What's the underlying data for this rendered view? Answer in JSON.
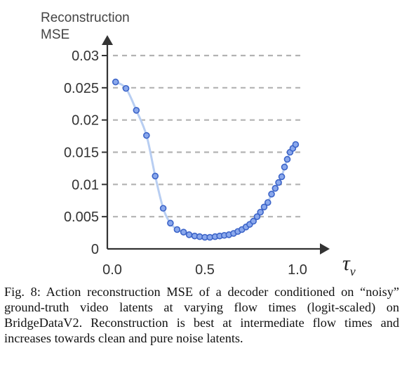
{
  "chart_data": {
    "type": "line",
    "title": "",
    "ylabel": "Reconstruction MSE",
    "xlabel": "τ",
    "xlabel_subscript": "v",
    "xlim": [
      -0.05,
      1.1
    ],
    "ylim": [
      0,
      0.031
    ],
    "grid": "horizontal dashed",
    "x_ticks": [
      {
        "value": 0.0,
        "label": "0.0"
      },
      {
        "value": 0.5,
        "label": "0.5"
      },
      {
        "value": 1.0,
        "label": "1.0"
      }
    ],
    "y_ticks": [
      {
        "value": 0,
        "label": "0"
      },
      {
        "value": 0.005,
        "label": "0.005"
      },
      {
        "value": 0.01,
        "label": "0.01"
      },
      {
        "value": 0.015,
        "label": "0.015"
      },
      {
        "value": 0.02,
        "label": "0.02"
      },
      {
        "value": 0.025,
        "label": "0.025"
      },
      {
        "value": 0.03,
        "label": "0.03"
      }
    ],
    "series": [
      {
        "x": [
          0.018,
          0.074,
          0.13,
          0.185,
          0.232,
          0.275,
          0.314,
          0.35,
          0.385,
          0.415,
          0.445,
          0.472,
          0.5,
          0.527,
          0.555,
          0.58,
          0.605,
          0.63,
          0.655,
          0.678,
          0.7,
          0.722,
          0.742,
          0.762,
          0.782,
          0.8,
          0.82,
          0.84,
          0.86,
          0.88,
          0.898,
          0.915,
          0.93,
          0.945,
          0.96,
          0.975,
          0.99
        ],
        "y": [
          0.0259,
          0.0249,
          0.0215,
          0.0176,
          0.0113,
          0.0063,
          0.004,
          0.003,
          0.0026,
          0.0022,
          0.002,
          0.0019,
          0.0018,
          0.0018,
          0.0019,
          0.002,
          0.0021,
          0.0022,
          0.0024,
          0.0027,
          0.003,
          0.0034,
          0.0038,
          0.0043,
          0.005,
          0.0057,
          0.0065,
          0.0072,
          0.0085,
          0.0094,
          0.0103,
          0.0112,
          0.0127,
          0.0139,
          0.015,
          0.0156,
          0.0162
        ]
      }
    ],
    "colors": {
      "marker_fill": "#8aa8ec",
      "marker_edge": "#3c64c8",
      "line": "#b8cef2",
      "grid": "#b3b3b3",
      "axis": "#333333"
    }
  },
  "caption": "Fig. 8: Action reconstruction MSE of a decoder conditioned on “noisy” ground-truth video latents at varying flow times (logit-scaled) on BridgeDataV2. Reconstruction is best at intermediate flow times and increases towards clean and pure noise latents."
}
